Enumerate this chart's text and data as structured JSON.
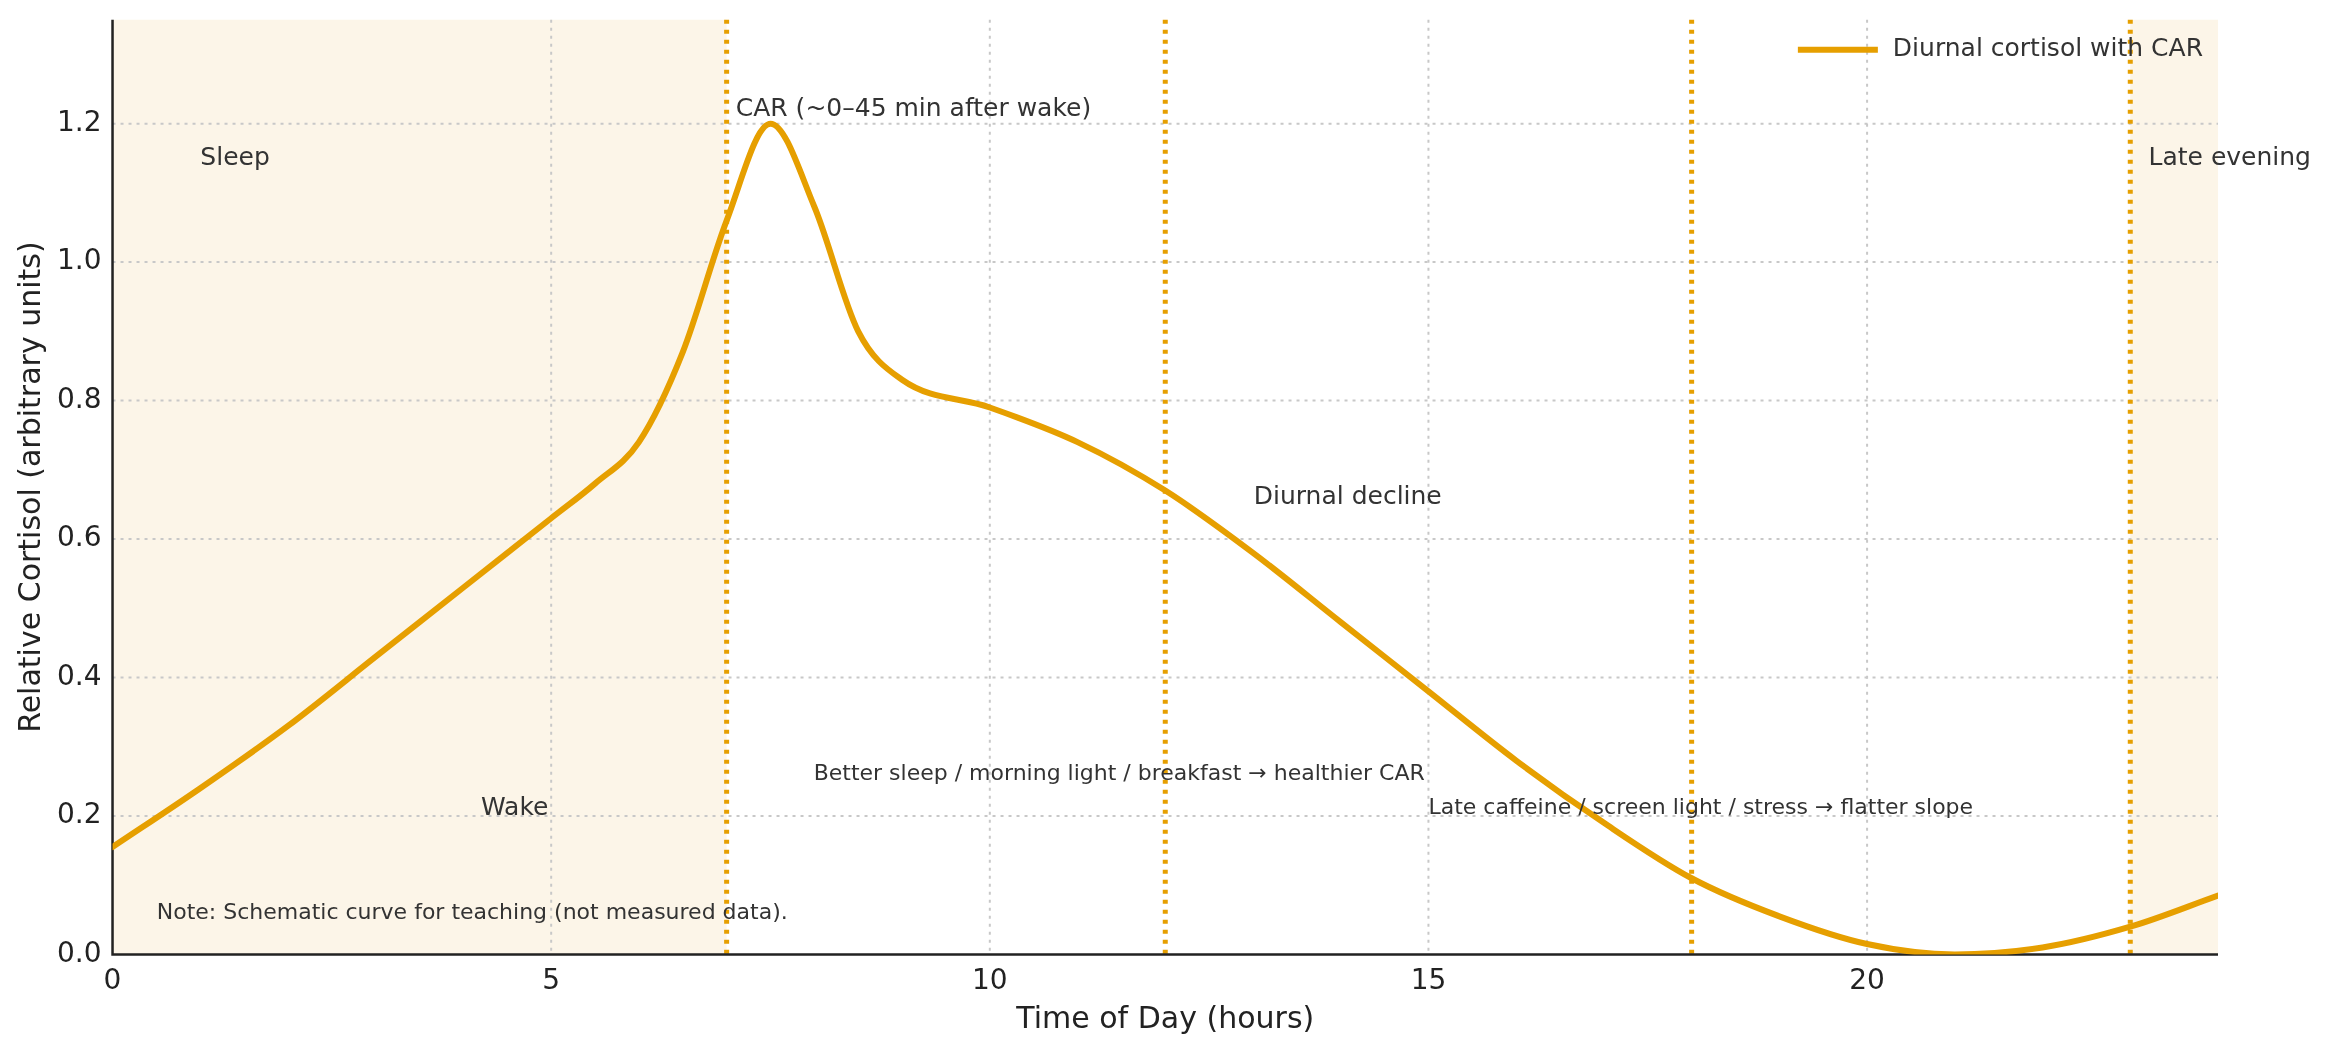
{
  "chart_data": {
    "type": "line",
    "xlabel": "Time of Day (hours)",
    "ylabel": "Relative Cortisol (arbitrary units)",
    "x": [
      0,
      1,
      2,
      3,
      4,
      5,
      5.5,
      6,
      6.5,
      7,
      7.5,
      8,
      8.5,
      9,
      10,
      11,
      12,
      13,
      14,
      15,
      16,
      17,
      18,
      19,
      20,
      21,
      22,
      23,
      24
    ],
    "series": [
      {
        "name": "Diurnal cortisol with CAR",
        "color": "#e69f00",
        "values": [
          0.155,
          0.24,
          0.33,
          0.43,
          0.53,
          0.63,
          0.68,
          0.74,
          0.87,
          1.06,
          1.2,
          1.08,
          0.9,
          0.83,
          0.79,
          0.74,
          0.67,
          0.58,
          0.48,
          0.38,
          0.28,
          0.19,
          0.11,
          0.055,
          0.015,
          0,
          0.01,
          0.04,
          0.085
        ]
      }
    ],
    "xlim": [
      0,
      24
    ],
    "xticks": [
      0,
      5,
      10,
      15,
      20
    ],
    "ylim": [
      0,
      1.35
    ],
    "yticks": [
      {
        "value": 0,
        "label": "0.0"
      },
      0.2,
      0.4,
      0.6,
      0.8,
      {
        "value": 1,
        "label": "1.0"
      },
      1.2
    ],
    "grid": true,
    "legend": "top right",
    "marker": "none",
    "line_style": "solid",
    "bands": [
      {
        "axis": "x",
        "from": 0,
        "to": 7,
        "color": "#fcf5e8"
      },
      {
        "axis": "x",
        "from": 23,
        "to": 24,
        "color": "#fcf5e8"
      }
    ],
    "ref_lines": [
      {
        "axis": "x",
        "value": 7,
        "color": "#e69f00",
        "line_style": "dotted"
      },
      {
        "axis": "x",
        "value": 12,
        "color": "#e69f00",
        "line_style": "dotted"
      },
      {
        "axis": "x",
        "value": 18,
        "color": "#e69f00",
        "line_style": "dotted"
      },
      {
        "axis": "x",
        "value": 23,
        "color": "#e69f00",
        "line_style": "dotted"
      }
    ],
    "annotations": [
      "Sleep",
      "Wake",
      "CAR (~0–45 min after wake)",
      "Diurnal decline",
      "Better sleep / morning light / breakfast → healthier CAR",
      "Late caffeine / screen light / stress → flatter slope",
      "Late evening",
      "Note: Schematic curve for teaching (not measured data)."
    ]
  }
}
